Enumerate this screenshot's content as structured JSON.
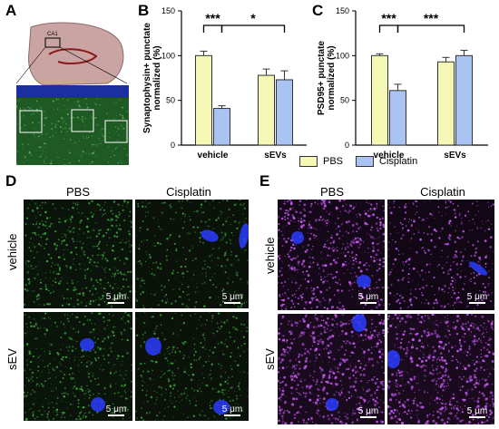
{
  "panels": {
    "A": "A",
    "B": "B",
    "C": "C",
    "D": "D",
    "E": "E"
  },
  "panelA": {
    "region_label": "CA1"
  },
  "chart_data": [
    {
      "panel": "B",
      "type": "bar",
      "categories": [
        "vehicle",
        "sEVs"
      ],
      "series": [
        {
          "name": "PBS",
          "values": [
            100,
            78
          ],
          "errors": [
            5,
            7
          ],
          "color": "#f5f7b4"
        },
        {
          "name": "Cisplatin",
          "values": [
            41,
            73
          ],
          "errors": [
            3,
            10
          ],
          "color": "#a9c4f2"
        }
      ],
      "ylabel": "Synaptophysin+ punctate normalized (%)",
      "ylim": [
        0,
        150
      ],
      "yticks": [
        0,
        50,
        100,
        150
      ],
      "significance": [
        "***",
        "*"
      ]
    },
    {
      "panel": "C",
      "type": "bar",
      "categories": [
        "vehicle",
        "sEVs"
      ],
      "series": [
        {
          "name": "PBS",
          "values": [
            100,
            93
          ],
          "errors": [
            2,
            5
          ],
          "color": "#f5f7b4"
        },
        {
          "name": "Cisplatin",
          "values": [
            61,
            100
          ],
          "errors": [
            7,
            6
          ],
          "color": "#a9c4f2"
        }
      ],
      "ylabel": "PSD95+ punctate normalized (%)",
      "ylim": [
        0,
        150
      ],
      "yticks": [
        0,
        50,
        100,
        150
      ],
      "significance": [
        "***",
        "***"
      ]
    }
  ],
  "legend": {
    "items": [
      "PBS",
      "Cisplatin"
    ]
  },
  "panelD": {
    "col_headers": [
      "PBS",
      "Cisplatin"
    ],
    "row_headers": [
      "vehicle",
      "sEV"
    ],
    "scale_bar": "5 μm"
  },
  "panelE": {
    "col_headers": [
      "PBS",
      "Cisplatin"
    ],
    "row_headers": [
      "vehicle",
      "sEV"
    ],
    "scale_bar": "5 μm"
  },
  "colors": {
    "pbs_bar": "#f5f7b4",
    "cisplatin_bar": "#a9c4f2",
    "green_signal": "#3fae3f",
    "magenta_signal": "#d05cff",
    "nuclei": "#2a3cff"
  }
}
